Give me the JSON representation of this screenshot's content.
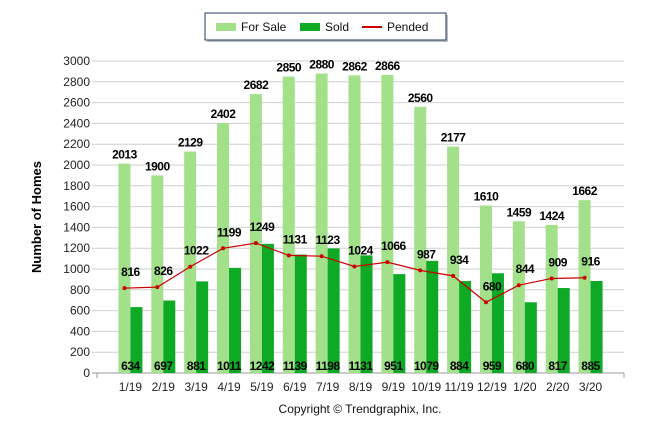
{
  "chart_data": {
    "type": "bar",
    "title": "",
    "xlabel": "",
    "ylabel": "Number of Homes",
    "ylim": [
      0,
      3000
    ],
    "yticks": [
      0,
      200,
      400,
      600,
      800,
      1000,
      1200,
      1400,
      1600,
      1800,
      2000,
      2200,
      2400,
      2600,
      2800,
      3000
    ],
    "grid": true,
    "legend_position": "top-center",
    "categories": [
      "1/19",
      "2/19",
      "3/19",
      "4/19",
      "5/19",
      "6/19",
      "7/19",
      "8/19",
      "9/19",
      "10/19",
      "11/19",
      "12/19",
      "1/20",
      "2/20",
      "3/20"
    ],
    "series": [
      {
        "name": "For Sale",
        "type": "bar",
        "color": "#a2e08a",
        "values": [
          2013,
          1900,
          2129,
          2402,
          2682,
          2850,
          2880,
          2862,
          2866,
          2560,
          2177,
          1610,
          1459,
          1424,
          1662
        ]
      },
      {
        "name": "Sold",
        "type": "bar",
        "color": "#0eaa25",
        "values": [
          634,
          697,
          881,
          1011,
          1242,
          1139,
          1198,
          1131,
          951,
          1079,
          884,
          959,
          680,
          817,
          885
        ]
      },
      {
        "name": "Pended",
        "type": "line",
        "color": "#cc0000",
        "values": [
          816,
          826,
          1022,
          1199,
          1249,
          1131,
          1123,
          1024,
          1066,
          987,
          934,
          680,
          844,
          909,
          916
        ]
      }
    ],
    "footer": "Copyright © Trendgraphix, Inc."
  }
}
